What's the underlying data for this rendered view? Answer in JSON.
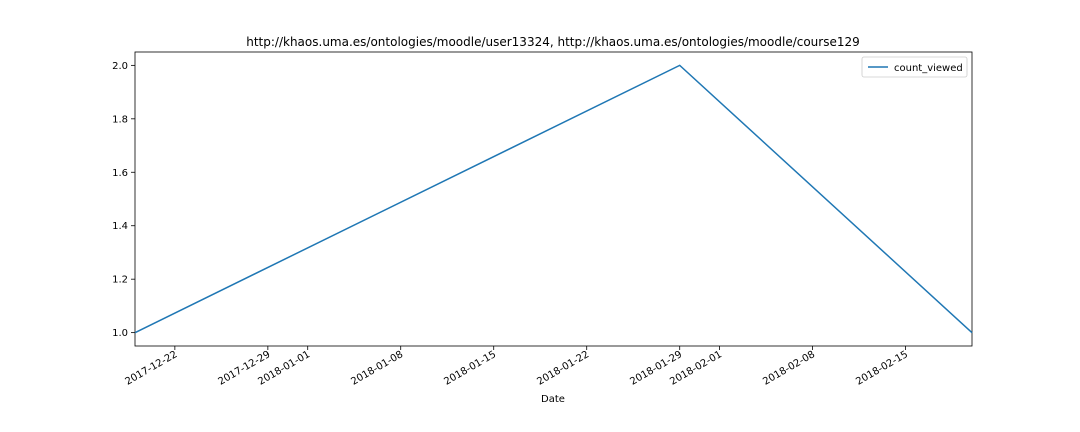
{
  "chart_data": {
    "type": "line",
    "title": "http://khaos.uma.es/ontologies/moodle/user13324, http://khaos.uma.es/ontologies/moodle/course129",
    "xlabel": "Date",
    "ylabel": "",
    "x_type": "date",
    "xlim": [
      "2017-12-19",
      "2018-02-20"
    ],
    "ylim": [
      0.95,
      2.05
    ],
    "x_ticks": [
      "2017-12-22",
      "2017-12-29",
      "2018-01-01",
      "2018-01-08",
      "2018-01-15",
      "2018-01-22",
      "2018-01-29",
      "2018-02-01",
      "2018-02-08",
      "2018-02-15"
    ],
    "y_ticks": [
      "1.0",
      "1.2",
      "1.4",
      "1.6",
      "1.8",
      "2.0"
    ],
    "series": [
      {
        "name": "count_viewed",
        "color": "#1f77b4",
        "x": [
          "2017-12-19",
          "2018-01-29",
          "2018-02-20"
        ],
        "y": [
          1,
          2,
          1
        ]
      }
    ],
    "legend_position": "top-right",
    "grid": false
  }
}
